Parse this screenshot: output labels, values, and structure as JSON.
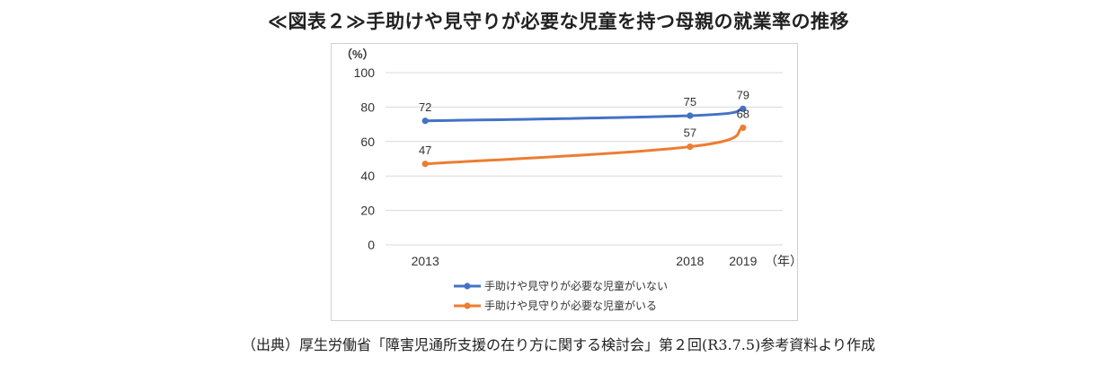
{
  "title": "≪図表２≫手助けや見守りが必要な児童を持つ母親の就業率の推移",
  "source": "（出典）厚生労働省「障害児通所支援の在り方に関する検討会」第２回(R3.7.5)参考資料より作成",
  "chart_data": {
    "type": "line",
    "title": "≪図表２≫手助けや見守りが必要な児童を持つ母親の就業率の推移",
    "ylabel": "（%）",
    "xlabel": "（年）",
    "x": [
      2013,
      2018,
      2019
    ],
    "ylim": [
      0,
      100
    ],
    "yticks": [
      0,
      20,
      40,
      60,
      80,
      100
    ],
    "grid": true,
    "legend_position": "bottom",
    "series": [
      {
        "name": "手助けや見守りが必要な児童がいない",
        "values": [
          72,
          75,
          79
        ],
        "color": "#4472C4"
      },
      {
        "name": "手助けや見守りが必要な児童がいる",
        "values": [
          47,
          57,
          68
        ],
        "color": "#ED7D31"
      }
    ]
  }
}
